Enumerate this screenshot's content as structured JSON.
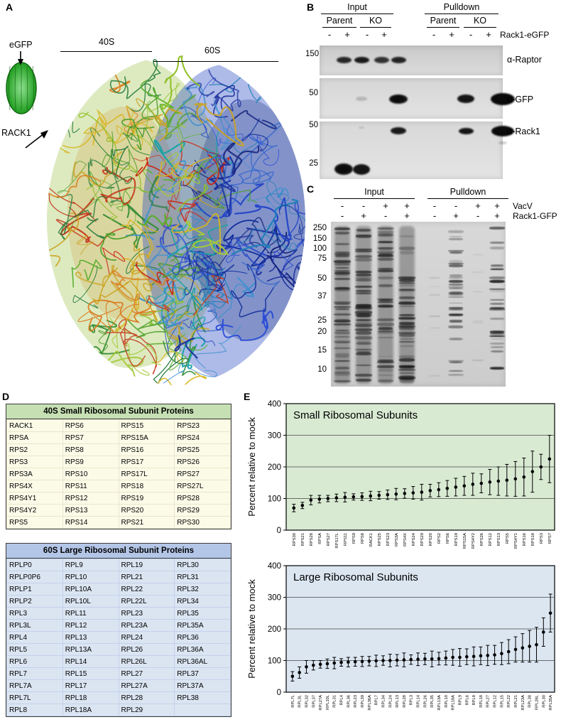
{
  "figure": {
    "panel_a": {
      "label": "A",
      "egfp_label": "eGFP",
      "rack1_label": "RACK1",
      "subunit_40s_label": "40S",
      "subunit_60s_label": "60S"
    },
    "panel_b": {
      "label": "B",
      "group_labels": [
        "Input",
        "Pulldown"
      ],
      "subgroup_labels": [
        "Parent",
        "KO",
        "Parent",
        "KO"
      ],
      "lane_signs": [
        "-",
        "+",
        "-",
        "+",
        "-",
        "+",
        "-",
        "+"
      ],
      "signs_row_label": "Rack1-eGFP",
      "markers": [
        "150",
        "50",
        "50",
        "25"
      ],
      "antibodies": [
        "α-Raptor",
        "α-GFP",
        "α-Rack1"
      ]
    },
    "panel_c": {
      "label": "C",
      "group_labels": [
        "Input",
        "Pulldown"
      ],
      "sign_rows": [
        {
          "signs": [
            "-",
            "-",
            "+",
            "+",
            "-",
            "-",
            "+",
            "+"
          ],
          "label": "VacV"
        },
        {
          "signs": [
            "-",
            "+",
            "-",
            "+",
            "-",
            "+",
            "-",
            "+"
          ],
          "label": "Rack1-GFP"
        }
      ],
      "markers": [
        "250",
        "150",
        "100",
        "75",
        "50",
        "37",
        "25",
        "20",
        "15",
        "10"
      ]
    },
    "panel_d": {
      "label": "D",
      "small_table": {
        "title": "40S Small Ribosomal Subunit Proteins",
        "header_color": "#c6e0b4",
        "rows": [
          [
            "RACK1",
            "RPS6",
            "RPS15",
            "RPS23"
          ],
          [
            "RPSA",
            "RPS7",
            "RPS15A",
            "RPS24"
          ],
          [
            "RPS2",
            "RPS8",
            "RPS16",
            "RPS25"
          ],
          [
            "RPS3",
            "RPS9",
            "RPS17",
            "RPS26"
          ],
          [
            "RPS3A",
            "RPS10",
            "RPS17L",
            "RPS27"
          ],
          [
            "RPS4X",
            "RPS11",
            "RPS18",
            "RPS27L"
          ],
          [
            "RPS4Y1",
            "RPS12",
            "RPS19",
            "RPS28"
          ],
          [
            "RPS4Y2",
            "RPS13",
            "RPS20",
            "RPS29"
          ],
          [
            "RPS5",
            "RPS14",
            "RPS21",
            "RPS30"
          ]
        ]
      },
      "large_table": {
        "title": "60S Large Ribosomal Subunit Proteins",
        "header_color": "#b4c6e7",
        "rows": [
          [
            "RPLP0",
            "RPL9",
            "RPL19",
            "RPL30"
          ],
          [
            "RPLP0P6",
            "RPL10",
            "RPL21",
            "RPL31"
          ],
          [
            "RPLP1",
            "RPL10A",
            "RPL22",
            "RPL32"
          ],
          [
            "RPLP2",
            "RPL10L",
            "RPL22L",
            "RPL34"
          ],
          [
            "RPL3",
            "RPL11",
            "RPL23",
            "RPL35"
          ],
          [
            "RPL3L",
            "RPL12",
            "RPL23A",
            "RPL35A"
          ],
          [
            "RPL4",
            "RPL13",
            "RPL24",
            "RPL36"
          ],
          [
            "RPL5",
            "RPL13A",
            "RPL26",
            "RPL36A"
          ],
          [
            "RPL6",
            "RPL14",
            "RPL26L",
            "RPL36AL"
          ],
          [
            "RPL7",
            "RPL15",
            "RPL27",
            "RPL37"
          ],
          [
            "RPL7A",
            "RPL17",
            "RPL27A",
            "RPL37A"
          ],
          [
            "RPL7L",
            "RPL18",
            "RPL28",
            "RPL38"
          ],
          [
            "RPL8",
            "RPL18A",
            "RPL29",
            ""
          ]
        ]
      }
    },
    "panel_e": {
      "label": "E"
    }
  },
  "chart_data": [
    {
      "type": "scatter",
      "title": "Small Ribosomal Subunits",
      "ylabel": "Percent relative to mock",
      "ylim": [
        0,
        400
      ],
      "yticks": [
        0,
        100,
        200,
        300,
        400
      ],
      "grid": true,
      "background": "#d9ead3",
      "categories": [
        "RPS30",
        "RPS21",
        "RPS28",
        "RPSA",
        "RPS27",
        "RPS17L",
        "RPS11",
        "RPS9",
        "RPS8",
        "RACK1",
        "RPS25",
        "RPS23",
        "RPS3A",
        "RPS4X",
        "RPS24",
        "RPS29",
        "RPS20",
        "RPS2",
        "RPS6",
        "RPS19",
        "RPS15A",
        "RPS4Y2",
        "RPS26",
        "RPS12",
        "RPS13",
        "RPS5",
        "RPS4Y1",
        "RPS16",
        "RPS18",
        "RPS3",
        "RPS7"
      ],
      "values": [
        70,
        78,
        95,
        98,
        100,
        102,
        104,
        105,
        106,
        108,
        110,
        112,
        114,
        116,
        118,
        120,
        125,
        128,
        132,
        136,
        140,
        145,
        148,
        152,
        155,
        158,
        162,
        168,
        185,
        200,
        225
      ],
      "errors": [
        12,
        10,
        15,
        12,
        10,
        12,
        15,
        10,
        12,
        15,
        12,
        15,
        18,
        15,
        20,
        25,
        20,
        22,
        25,
        28,
        30,
        35,
        30,
        40,
        45,
        50,
        55,
        60,
        65,
        40,
        75
      ]
    },
    {
      "type": "scatter",
      "title": "Large Ribosomal Subunits",
      "ylabel": "Percent relative to mock",
      "ylim": [
        0,
        400
      ],
      "yticks": [
        0,
        100,
        200,
        300,
        400
      ],
      "grid": true,
      "background": "#dce6f1",
      "categories": [
        "RPL7L",
        "RPL3L",
        "RPL32",
        "RPL37",
        "RPL27A",
        "RPL10L",
        "RPL31",
        "RPL4",
        "RPL36",
        "RPL23",
        "RPL39",
        "RPL36A",
        "RPL7",
        "RPL34",
        "RPL24",
        "RPL13",
        "RPL28",
        "RPL3",
        "RPL14",
        "RPL26",
        "RPL35",
        "RPL13A",
        "RPL10",
        "RPL18A",
        "RPL9",
        "RPL6",
        "RPL8",
        "RPL18",
        "RPL27",
        "RPL12",
        "RPL15",
        "RPL22",
        "RPL21",
        "RPL23A",
        "RPL38",
        "RPL26L",
        "RPL30",
        "RPL35A"
      ],
      "values": [
        50,
        62,
        80,
        85,
        88,
        90,
        92,
        94,
        95,
        96,
        97,
        98,
        99,
        100,
        100,
        101,
        102,
        103,
        104,
        105,
        105,
        106,
        108,
        110,
        110,
        112,
        113,
        115,
        116,
        118,
        122,
        128,
        135,
        140,
        145,
        150,
        190,
        250
      ],
      "errors": [
        15,
        18,
        20,
        15,
        12,
        15,
        18,
        12,
        15,
        14,
        16,
        15,
        18,
        15,
        20,
        18,
        22,
        15,
        20,
        18,
        25,
        20,
        22,
        25,
        28,
        25,
        30,
        28,
        32,
        30,
        35,
        38,
        40,
        45,
        50,
        55,
        45,
        60
      ]
    }
  ]
}
